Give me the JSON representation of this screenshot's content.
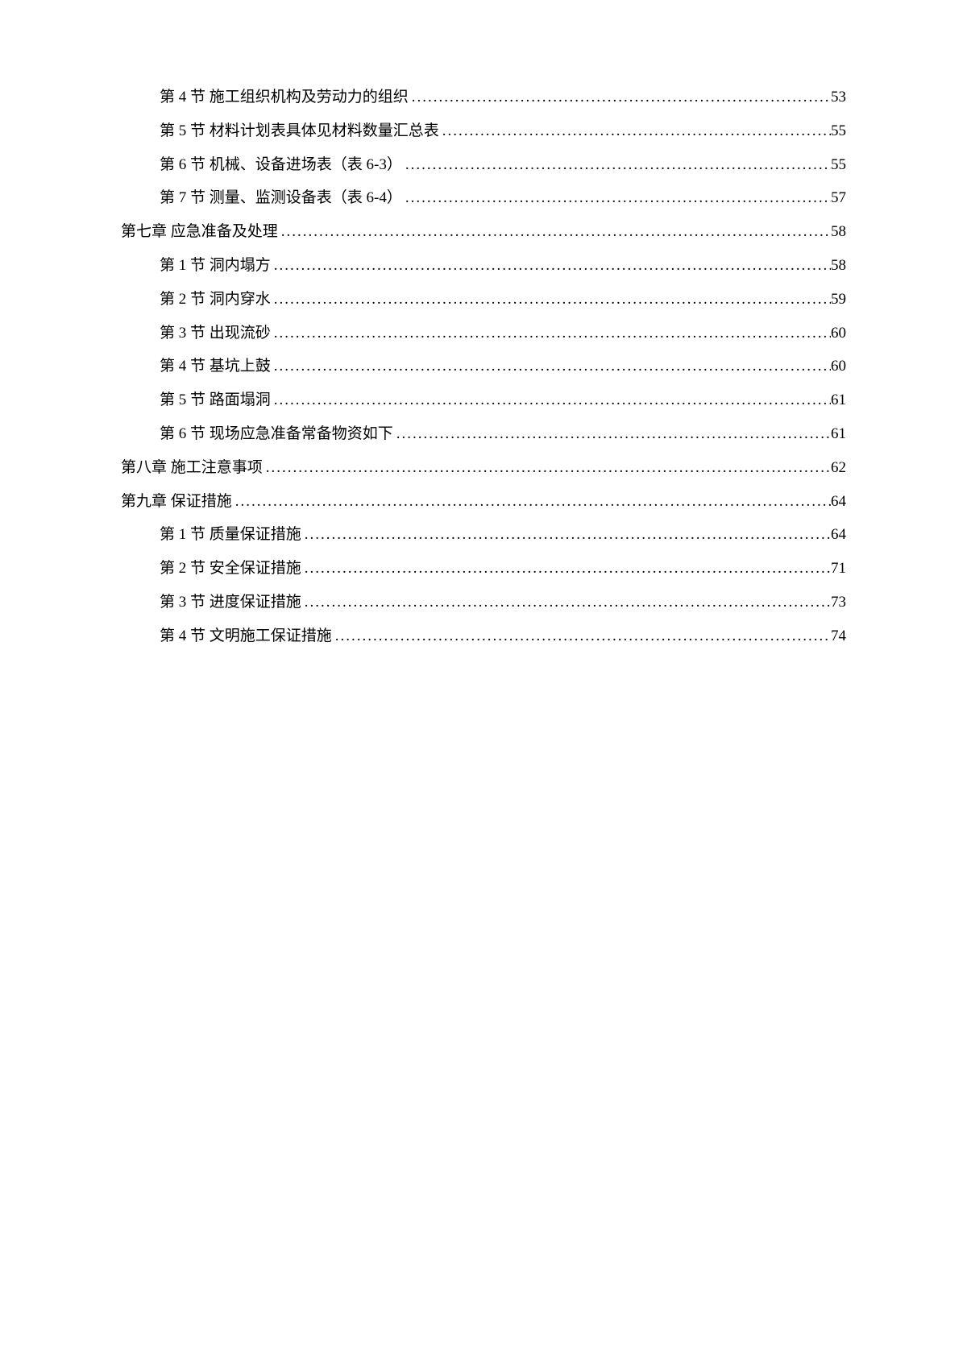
{
  "toc": [
    {
      "level": 2,
      "label": "第 4 节 施工组织机构及劳动力的组织",
      "page": "53"
    },
    {
      "level": 2,
      "label": "第 5 节 材料计划表具体见材料数量汇总表",
      "page": "55"
    },
    {
      "level": 2,
      "label": "第 6 节 机械、设备进场表（表 6-3）",
      "page": "55"
    },
    {
      "level": 2,
      "label": "第 7 节 测量、监测设备表（表 6-4）",
      "page": "57"
    },
    {
      "level": 1,
      "label": "第七章 应急准备及处理",
      "page": "58"
    },
    {
      "level": 2,
      "label": "第 1 节 洞内塌方",
      "page": "58"
    },
    {
      "level": 2,
      "label": "第 2 节 洞内穿水",
      "page": "59"
    },
    {
      "level": 2,
      "label": "第 3 节 出现流砂",
      "page": "60"
    },
    {
      "level": 2,
      "label": "第 4 节 基坑上鼓",
      "page": "60"
    },
    {
      "level": 2,
      "label": "第 5 节 路面塌洞",
      "page": "61"
    },
    {
      "level": 2,
      "label": "第 6 节 现场应急准备常备物资如下",
      "page": "61"
    },
    {
      "level": 1,
      "label": "第八章 施工注意事项",
      "page": "62"
    },
    {
      "level": 1,
      "label": "第九章 保证措施",
      "page": "64"
    },
    {
      "level": 2,
      "label": "第 1 节 质量保证措施",
      "page": "64"
    },
    {
      "level": 2,
      "label": "第 2 节 安全保证措施",
      "page": "71"
    },
    {
      "level": 2,
      "label": "第 3 节 进度保证措施",
      "page": "73"
    },
    {
      "level": 2,
      "label": "第 4 节 文明施工保证措施",
      "page": "74"
    }
  ]
}
